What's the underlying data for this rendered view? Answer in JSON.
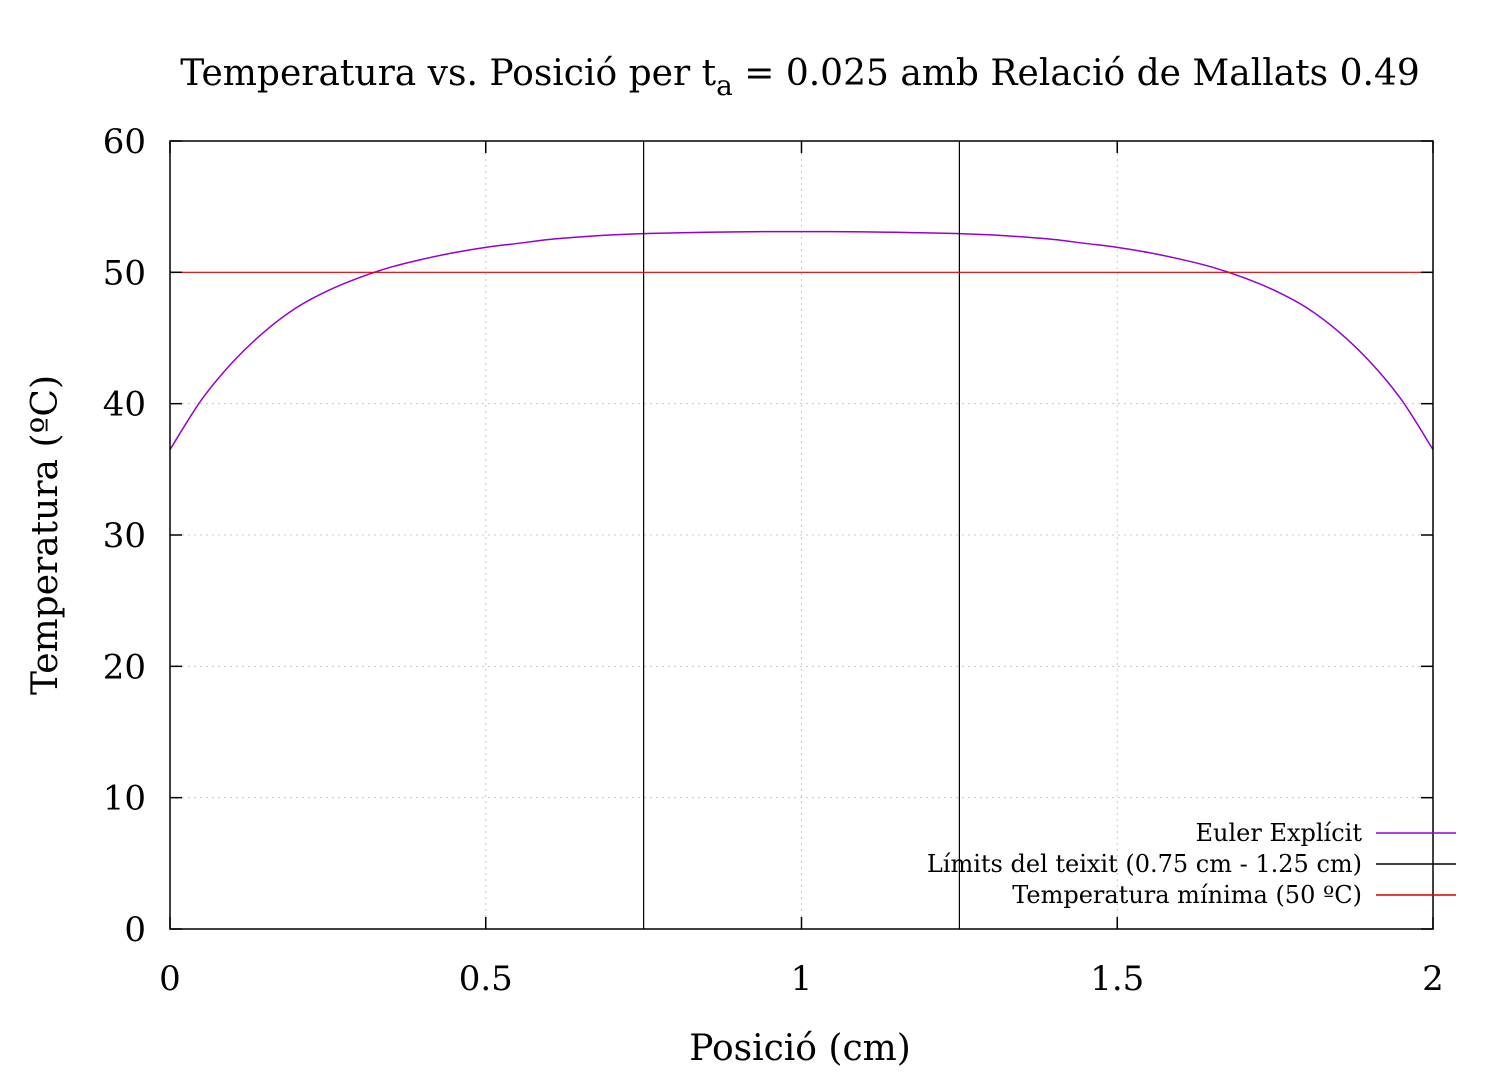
{
  "chart_data": {
    "type": "line",
    "title": {
      "prefix": "Temperatura vs. Posició per t",
      "subscript": "a",
      "suffix": " = 0.025 amb Relació de Mallats 0.49"
    },
    "xlabel": "Posició (cm)",
    "ylabel": "Temperatura (ºC)",
    "xlim": [
      0,
      2
    ],
    "ylim": [
      0,
      60
    ],
    "x_ticks": [
      {
        "value": 0,
        "label": "0"
      },
      {
        "value": 0.5,
        "label": "0.5"
      },
      {
        "value": 1,
        "label": "1"
      },
      {
        "value": 1.5,
        "label": "1.5"
      },
      {
        "value": 2,
        "label": "2"
      }
    ],
    "y_ticks": [
      {
        "value": 0,
        "label": "0"
      },
      {
        "value": 10,
        "label": "10"
      },
      {
        "value": 20,
        "label": "20"
      },
      {
        "value": 30,
        "label": "30"
      },
      {
        "value": 40,
        "label": "40"
      },
      {
        "value": 50,
        "label": "50"
      },
      {
        "value": 60,
        "label": "60"
      }
    ],
    "grid": true,
    "legend_position": "bottom-right",
    "series": [
      {
        "name": "Euler Explícit",
        "color": "#9400d3",
        "kind": "curve",
        "x": [
          0,
          0.05,
          0.1,
          0.15,
          0.2,
          0.25,
          0.3,
          0.35,
          0.4,
          0.45,
          0.5,
          0.55,
          0.6,
          0.65,
          0.7,
          0.75,
          0.8,
          0.85,
          0.9,
          0.95,
          1,
          1.05,
          1.1,
          1.15,
          1.2,
          1.25,
          1.3,
          1.35,
          1.4,
          1.45,
          1.5,
          1.55,
          1.6,
          1.65,
          1.7,
          1.75,
          1.8,
          1.85,
          1.9,
          1.95,
          2
        ],
        "y": [
          36.5,
          40.3,
          43.2,
          45.5,
          47.3,
          48.6,
          49.6,
          50.4,
          51.0,
          51.5,
          51.9,
          52.2,
          52.5,
          52.7,
          52.85,
          52.95,
          53.0,
          53.05,
          53.08,
          53.1,
          53.1,
          53.1,
          53.08,
          53.05,
          53.0,
          52.95,
          52.85,
          52.7,
          52.5,
          52.2,
          51.9,
          51.5,
          51.0,
          50.4,
          49.6,
          48.6,
          47.3,
          45.5,
          43.2,
          40.3,
          36.5
        ]
      },
      {
        "name": "Límits del teixit (0.75 cm - 1.25 cm)",
        "color": "#000000",
        "kind": "vertical",
        "x_values": [
          0.75,
          1.25
        ]
      },
      {
        "name": "Temperatura mínima (50 ºC)",
        "color": "#e00000",
        "kind": "horizontal",
        "y_value": 50
      }
    ]
  }
}
